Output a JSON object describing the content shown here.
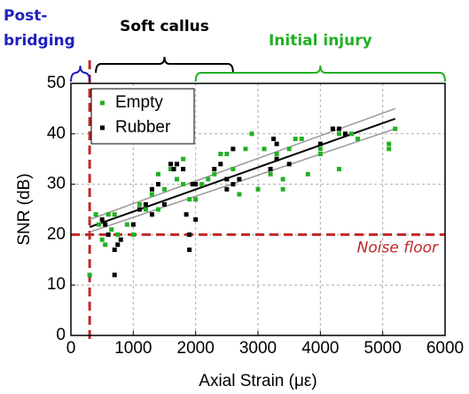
{
  "chart_data": {
    "type": "scatter",
    "xlabel": "Axial Strain (με)",
    "ylabel": "SNR (dB)",
    "xlim": [
      0,
      6000
    ],
    "ylim": [
      0,
      50
    ],
    "xticks": [
      0,
      1000,
      2000,
      3000,
      4000,
      5000,
      6000
    ],
    "yticks": [
      0,
      10,
      20,
      30,
      40,
      50
    ],
    "grid": true,
    "legend": "upper left",
    "series": [
      {
        "name": "Empty",
        "color": "#22b022",
        "x": [
          300,
          400,
          450,
          500,
          550,
          600,
          650,
          700,
          750,
          900,
          1000,
          1100,
          1200,
          1300,
          1400,
          1400,
          1500,
          1600,
          1700,
          1800,
          1800,
          1900,
          2000,
          2100,
          2200,
          2300,
          2400,
          2500,
          2500,
          2600,
          2700,
          2800,
          2900,
          3000,
          3100,
          3200,
          3300,
          3400,
          3400,
          3500,
          3600,
          3700,
          3800,
          4000,
          4000,
          4200,
          4300,
          4300,
          4500,
          4600,
          5100,
          5100,
          5200
        ],
        "values": [
          12,
          24,
          22,
          19,
          18,
          24,
          21,
          24,
          20,
          22,
          20,
          26,
          25,
          28,
          32,
          25,
          29,
          33,
          31,
          35,
          30,
          27,
          27,
          30,
          31,
          32,
          36,
          36,
          31,
          33,
          28,
          37,
          40,
          29,
          37,
          32,
          36,
          31,
          29,
          37,
          39,
          39,
          32,
          36,
          37,
          41,
          33,
          40,
          40,
          39,
          37,
          38,
          41
        ]
      },
      {
        "name": "Rubber",
        "color": "#000000",
        "x": [
          500,
          550,
          600,
          700,
          700,
          750,
          800,
          1000,
          1100,
          1200,
          1300,
          1300,
          1400,
          1500,
          1600,
          1650,
          1700,
          1800,
          1850,
          1900,
          1900,
          1950,
          2000,
          2000,
          2300,
          2400,
          2500,
          2500,
          2600,
          2600,
          2700,
          3200,
          3250,
          3300,
          3300,
          3500,
          4000,
          4200,
          4300,
          4400
        ],
        "values": [
          23,
          22,
          20,
          17,
          12,
          18,
          19,
          22,
          25,
          26,
          29,
          24,
          30,
          26,
          34,
          33,
          34,
          33,
          24,
          17,
          20,
          30,
          30,
          23,
          33,
          34,
          29,
          31,
          30,
          37,
          31,
          33,
          39,
          35,
          38,
          34,
          38,
          41,
          41,
          40
        ]
      }
    ],
    "fit_lines": [
      {
        "color": "#999999",
        "x": [
          300,
          5200
        ],
        "values": [
          23,
          45
        ]
      },
      {
        "color": "#999999",
        "x": [
          300,
          5200
        ],
        "values": [
          20.5,
          41
        ]
      },
      {
        "color": "#000000",
        "x": [
          300,
          5200
        ],
        "values": [
          21.5,
          43
        ]
      }
    ],
    "noise_floor": {
      "label": "Noise floor",
      "value": 20,
      "color": "#c0282a"
    },
    "bridging_line": {
      "value": 300,
      "color": "#c0282a"
    },
    "annotations": [
      {
        "lines": [
          "Post-",
          "bridging"
        ],
        "color": "#1f1fbf",
        "x_range": [
          0,
          300
        ]
      },
      {
        "lines": [
          "Soft callus"
        ],
        "color": "#000000",
        "x_range": [
          400,
          2600
        ]
      },
      {
        "lines": [
          "Initial injury"
        ],
        "color": "#22b022",
        "x_range": [
          2000,
          6000
        ]
      }
    ]
  }
}
